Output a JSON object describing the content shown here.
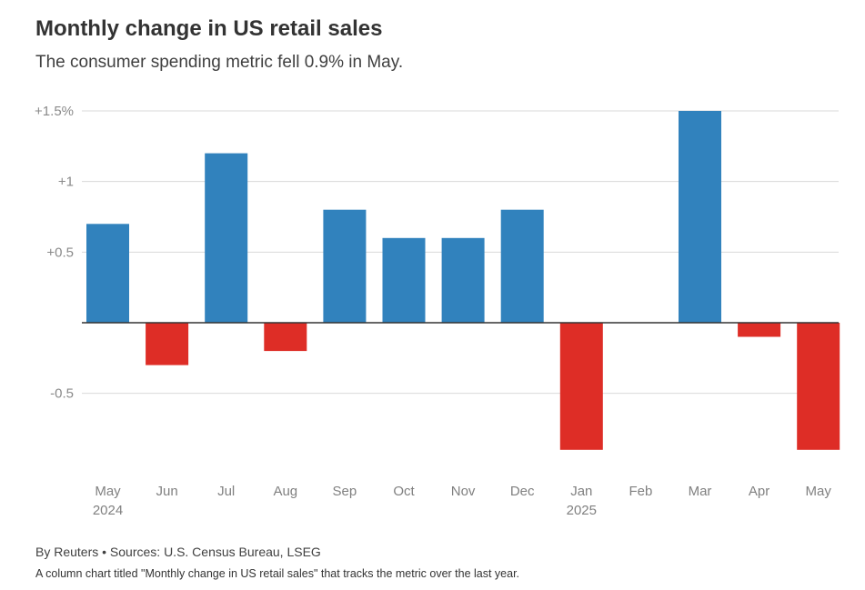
{
  "header": {
    "title": "Monthly change in US retail sales",
    "subtitle": "The consumer spending metric fell 0.9% in May."
  },
  "footer": {
    "source": "By Reuters • Sources: U.S. Census Bureau, LSEG",
    "note": "A column chart titled \"Monthly change in US retail sales\" that tracks the metric over the last year."
  },
  "colors": {
    "positive": "#3182bd",
    "negative": "#de2d26",
    "gridline": "#d9d9d9",
    "zeroline": "#333333"
  },
  "chart_data": {
    "type": "bar",
    "title": "Monthly change in US retail sales",
    "xlabel": "",
    "ylabel": "",
    "ylim": [
      -1.0,
      1.5
    ],
    "grid": true,
    "categories": [
      "May",
      "Jun",
      "Jul",
      "Aug",
      "Sep",
      "Oct",
      "Nov",
      "Dec",
      "Jan",
      "Feb",
      "Mar",
      "Apr",
      "May"
    ],
    "category_sublabels": [
      "2024",
      "",
      "",
      "",
      "",
      "",
      "",
      "",
      "2025",
      "",
      "",
      "",
      ""
    ],
    "values": [
      0.7,
      -0.3,
      1.2,
      -0.2,
      0.8,
      0.6,
      0.6,
      0.8,
      -0.9,
      0.0,
      1.5,
      -0.1,
      -0.9
    ],
    "yticks": [
      {
        "value": 1.5,
        "label": "+1.5%"
      },
      {
        "value": 1.0,
        "label": "+1"
      },
      {
        "value": 0.5,
        "label": "+0.5"
      },
      {
        "value": -0.5,
        "label": "-0.5"
      }
    ],
    "units": "%"
  }
}
